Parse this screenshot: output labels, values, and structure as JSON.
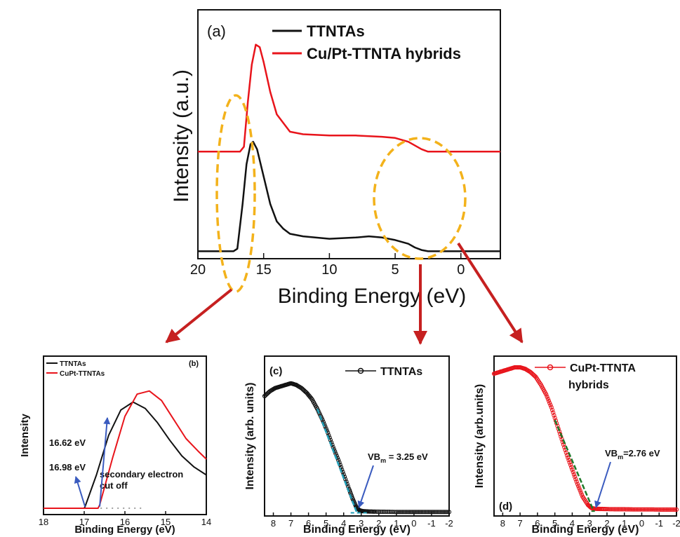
{
  "colors": {
    "series_black": "#111111",
    "series_red": "#e8141b",
    "highlight_ellipse": "#f3b21b",
    "arrow_red": "#c62020",
    "arrow_blue": "#3a5bbf",
    "fit_line_teal": "#1f9fb8",
    "fit_line_green": "#1f7a2a"
  },
  "chart_data": [
    {
      "panel": "a",
      "type": "line",
      "panel_label": "(a)",
      "xlabel": "Binding Energy (eV)",
      "ylabel": "Intensity (a.u.)",
      "xlim": [
        20,
        -3
      ],
      "x_reversed": true,
      "y_ticks_shown": false,
      "xticks": [
        20,
        15,
        10,
        5,
        0
      ],
      "xtick_labels": [
        "20",
        "15",
        "10",
        "5",
        "0"
      ],
      "ylim": [
        0,
        1
      ],
      "series": [
        {
          "name": "TTNTAs",
          "color": "#111111",
          "x": [
            20,
            17.3,
            17.0,
            16.6,
            16.3,
            16.0,
            15.8,
            15.5,
            15.0,
            14.5,
            14.0,
            13.5,
            13.0,
            12.0,
            10.0,
            8.0,
            7.0,
            6.0,
            5.0,
            4.0,
            3.5,
            3.0,
            2.5,
            0,
            -3
          ],
          "values": [
            0.03,
            0.03,
            0.04,
            0.22,
            0.38,
            0.46,
            0.47,
            0.44,
            0.33,
            0.22,
            0.15,
            0.12,
            0.1,
            0.09,
            0.08,
            0.085,
            0.09,
            0.085,
            0.075,
            0.06,
            0.045,
            0.035,
            0.03,
            0.03,
            0.03
          ]
        },
        {
          "name": "Cu/Pt-TTNTA hybrids",
          "color": "#e8141b",
          "x": [
            20,
            16.8,
            16.5,
            16.2,
            15.9,
            15.6,
            15.3,
            15.0,
            14.5,
            14.0,
            13.0,
            12.0,
            10.0,
            8.0,
            6.0,
            5.0,
            4.0,
            3.0,
            2.5,
            0,
            -3
          ],
          "values": [
            0.43,
            0.43,
            0.45,
            0.63,
            0.78,
            0.86,
            0.85,
            0.79,
            0.67,
            0.58,
            0.51,
            0.5,
            0.495,
            0.495,
            0.49,
            0.485,
            0.47,
            0.44,
            0.43,
            0.43,
            0.43
          ]
        }
      ]
    },
    {
      "panel": "b",
      "type": "line",
      "panel_label": "(b)",
      "xlabel": "Binding Energy (eV)",
      "ylabel": "Intensity",
      "xlim": [
        18,
        14
      ],
      "x_reversed": true,
      "xticks": [
        18,
        17,
        16,
        15,
        14
      ],
      "xtick_labels": [
        "18",
        "17",
        "16",
        "15",
        "14"
      ],
      "ylim": [
        0,
        1
      ],
      "series": [
        {
          "name": "TTNTAs",
          "color": "#111111",
          "x": [
            18,
            17.0,
            16.98,
            16.7,
            16.4,
            16.1,
            15.8,
            15.5,
            15.2,
            14.9,
            14.6,
            14.3,
            14.0
          ],
          "values": [
            0.04,
            0.04,
            0.05,
            0.25,
            0.5,
            0.66,
            0.71,
            0.67,
            0.58,
            0.47,
            0.37,
            0.3,
            0.25
          ]
        },
        {
          "name": "CuPt-TTNTAs",
          "color": "#e8141b",
          "x": [
            18,
            16.66,
            16.62,
            16.3,
            16.0,
            15.7,
            15.4,
            15.1,
            14.8,
            14.5,
            14.2,
            14.0
          ],
          "values": [
            0.04,
            0.04,
            0.06,
            0.36,
            0.62,
            0.76,
            0.78,
            0.72,
            0.6,
            0.48,
            0.4,
            0.35
          ]
        }
      ],
      "annotations": [
        {
          "text": "16.62 eV",
          "x": 16.62
        },
        {
          "text": "16.98 eV",
          "x": 16.98
        },
        {
          "text": "secondary electron",
          "line": 1
        },
        {
          "text": "cut off",
          "line": 2
        }
      ]
    },
    {
      "panel": "c",
      "type": "scatter",
      "panel_label": "(c)",
      "xlabel": "Binding Energy (eV)",
      "ylabel": "Intensity (arb. units)",
      "xlim": [
        8.5,
        -2
      ],
      "x_reversed": true,
      "xticks": [
        8,
        7,
        6,
        5,
        4,
        3,
        2,
        1,
        0,
        -1,
        -2
      ],
      "xtick_labels": [
        "8",
        "7",
        "6",
        "5",
        "4",
        "3",
        "2",
        "1",
        "0",
        "-1",
        "-2"
      ],
      "ylim": [
        0,
        1
      ],
      "series": [
        {
          "name": "TTNTAs",
          "color": "#111111",
          "marker": "open-circle",
          "x": [
            8.5,
            8.2,
            7.9,
            7.6,
            7.3,
            7.0,
            6.7,
            6.4,
            6.1,
            5.8,
            5.5,
            5.2,
            4.9,
            4.6,
            4.3,
            4.0,
            3.7,
            3.5,
            3.3,
            3.1,
            2.9,
            2.6,
            2.2,
            1.6,
            1.0,
            0.5,
            0,
            -0.5,
            -1.0,
            -1.5,
            -2.0
          ],
          "values": [
            0.75,
            0.78,
            0.8,
            0.81,
            0.82,
            0.83,
            0.82,
            0.8,
            0.77,
            0.73,
            0.67,
            0.6,
            0.52,
            0.43,
            0.35,
            0.26,
            0.17,
            0.11,
            0.06,
            0.035,
            0.03,
            0.028,
            0.027,
            0.026,
            0.025,
            0.025,
            0.025,
            0.025,
            0.025,
            0.025,
            0.025
          ]
        }
      ],
      "fit_line": {
        "x": [
          5.5,
          3.25
        ],
        "values": [
          0.67,
          0.02
        ]
      },
      "baseline": {
        "x": [
          3.6,
          2.6
        ],
        "values": [
          0.02,
          0.02
        ]
      },
      "annotation": {
        "prefix": "VB",
        "subscript": "m",
        "suffix": " = 3.25 eV",
        "x": 3.25
      }
    },
    {
      "panel": "d",
      "type": "scatter",
      "panel_label": "(d)",
      "xlabel": "Binding Energy (eV)",
      "ylabel": "Intensity (arb.units)",
      "xlim": [
        8.5,
        -2
      ],
      "x_reversed": true,
      "xticks": [
        8,
        7,
        6,
        5,
        4,
        3,
        2,
        1,
        0,
        -1,
        -2
      ],
      "xtick_labels": [
        "8",
        "7",
        "6",
        "5",
        "4",
        "3",
        "2",
        "1",
        "0",
        "-1",
        "-2"
      ],
      "ylim": [
        0,
        1
      ],
      "series": [
        {
          "name": "CuPt-TTNTA hybrids",
          "legend_lines": [
            "CuPt-TTNTA",
            "hybrids"
          ],
          "color": "#e8141b",
          "marker": "open-circle",
          "x": [
            8.5,
            8.2,
            7.9,
            7.6,
            7.3,
            7.0,
            6.7,
            6.4,
            6.1,
            5.8,
            5.5,
            5.2,
            4.9,
            4.6,
            4.3,
            4.0,
            3.7,
            3.4,
            3.1,
            2.9,
            2.7,
            2.4,
            2.0,
            1.5,
            1.0,
            0.5,
            0,
            -0.5,
            -1.0,
            -1.5,
            -2.0
          ],
          "values": [
            0.89,
            0.9,
            0.91,
            0.92,
            0.93,
            0.93,
            0.92,
            0.9,
            0.87,
            0.82,
            0.76,
            0.68,
            0.58,
            0.48,
            0.38,
            0.29,
            0.2,
            0.12,
            0.07,
            0.05,
            0.045,
            0.044,
            0.043,
            0.042,
            0.042,
            0.041,
            0.041,
            0.041,
            0.04,
            0.04,
            0.04
          ]
        }
      ],
      "fit_line": {
        "x": [
          5.0,
          2.76
        ],
        "values": [
          0.6,
          0.03
        ]
      },
      "baseline": {
        "x": [
          2.9,
          2.6
        ],
        "values": [
          0.03,
          0.03
        ]
      },
      "annotation": {
        "prefix": "VB",
        "subscript": "m",
        "suffix": "=2.76 eV",
        "x": 2.76
      }
    }
  ]
}
